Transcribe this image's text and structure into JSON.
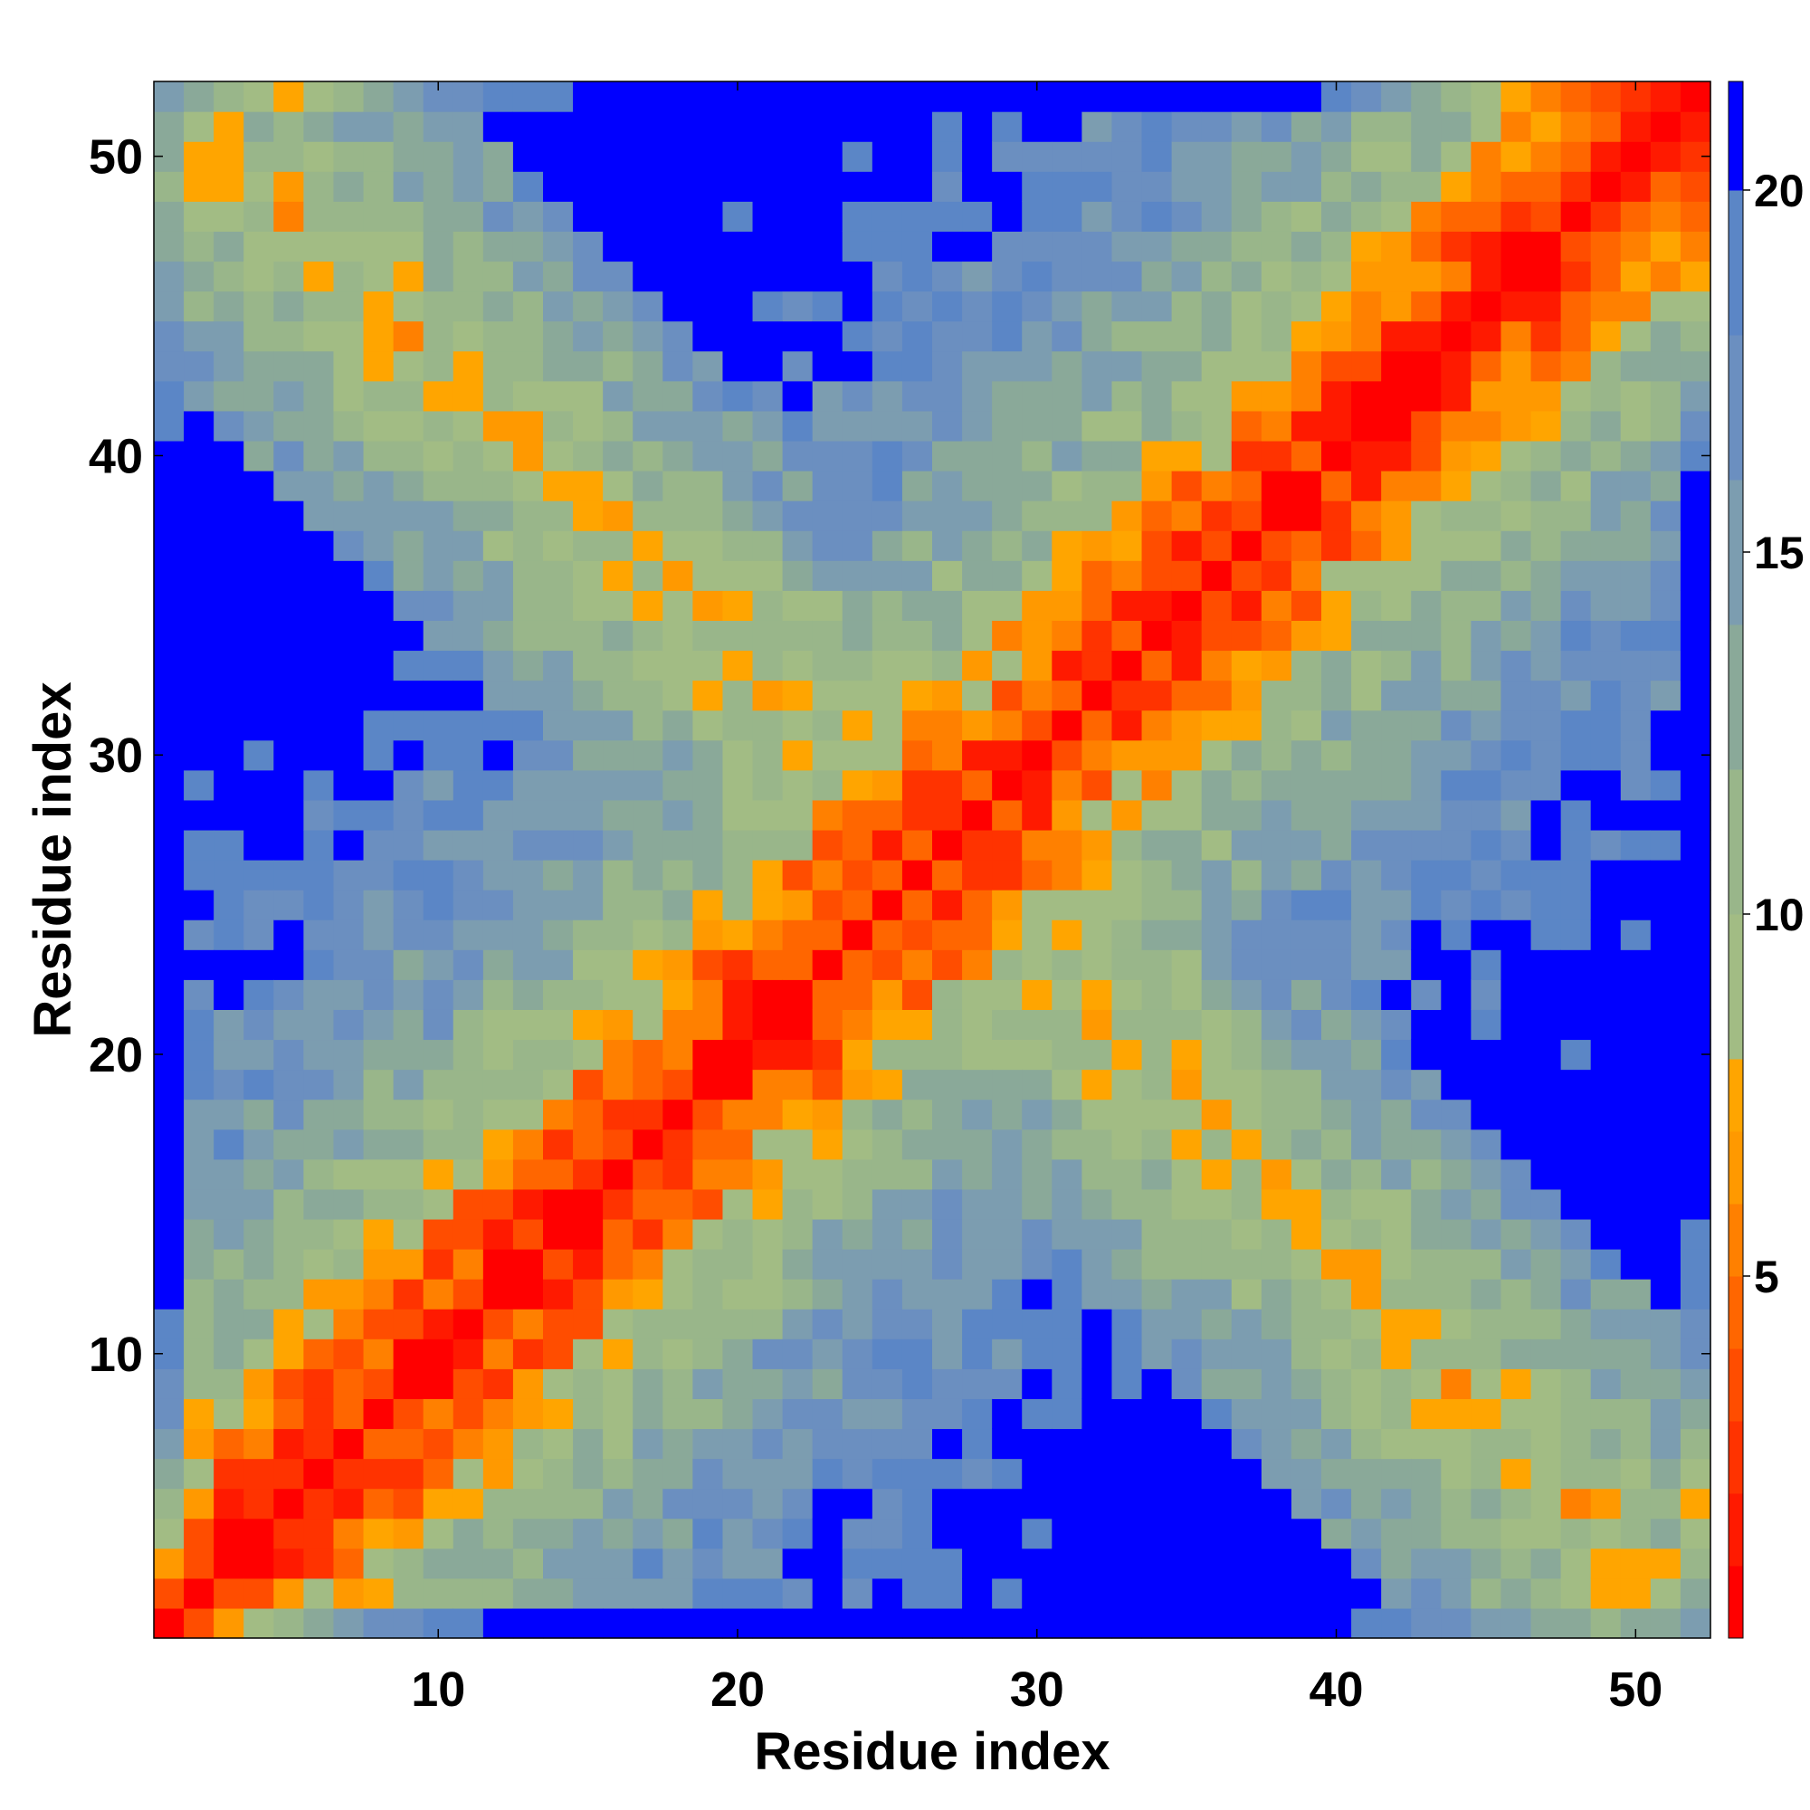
{
  "chart_data": {
    "type": "heatmap",
    "title": "",
    "xlabel": "Residue index",
    "ylabel": "Residue index",
    "n_residues": 52,
    "x_ticks": [
      10,
      20,
      30,
      40,
      50
    ],
    "y_ticks": [
      10,
      20,
      30,
      40,
      50
    ],
    "colorbar": {
      "range": [
        0,
        21.5
      ],
      "ticks": [
        5,
        10,
        15,
        20
      ],
      "bins": [
        {
          "upper": 1.0,
          "color": "#ff0000"
        },
        {
          "upper": 2.0,
          "color": "#ff1a00"
        },
        {
          "upper": 3.0,
          "color": "#ff3300"
        },
        {
          "upper": 4.0,
          "color": "#ff4d00"
        },
        {
          "upper": 5.0,
          "color": "#ff6600"
        },
        {
          "upper": 6.0,
          "color": "#ff8000"
        },
        {
          "upper": 7.0,
          "color": "#ff9900"
        },
        {
          "upper": 8.0,
          "color": "#ffa500"
        },
        {
          "upper": 10.0,
          "color": "#a2bc84"
        },
        {
          "upper": 12.0,
          "color": "#99b68a"
        },
        {
          "upper": 14.0,
          "color": "#8aa999"
        },
        {
          "upper": 16.0,
          "color": "#7c9db0"
        },
        {
          "upper": 18.0,
          "color": "#6b8fc0"
        },
        {
          "upper": 20.0,
          "color": "#5b86c6"
        },
        {
          "upper": 99.0,
          "color": "#0000ff"
        }
      ]
    },
    "matrix_description": "Symmetric 52x52 residue distance map; each cell value = approximate distance between residue i and residue j.",
    "anchors": {
      "rows": [
        {
          "i": 1,
          "vals": [
            0,
            4,
            7,
            10,
            12,
            14,
            15,
            17,
            18,
            19,
            20,
            21,
            21,
            21,
            21,
            22,
            22,
            22,
            22,
            22,
            22,
            22,
            22,
            22,
            22,
            22,
            22,
            22,
            22,
            22,
            22,
            22,
            22,
            22,
            22,
            22,
            22,
            22,
            22,
            21,
            20,
            19,
            18,
            17,
            16,
            15,
            14,
            13,
            12,
            13,
            14,
            15
          ]
        },
        {
          "i": 52,
          "vals": [
            15,
            14,
            12,
            10,
            8,
            10,
            12,
            14,
            16,
            17,
            18,
            19,
            20,
            20,
            21,
            21,
            22,
            22,
            22,
            22,
            22,
            22,
            22,
            22,
            22,
            22,
            22,
            22,
            22,
            22,
            22,
            22,
            22,
            22,
            22,
            22,
            22,
            22,
            21,
            20,
            18,
            16,
            14,
            12,
            10,
            8,
            6,
            5,
            4,
            3,
            2,
            0
          ]
        }
      ]
    }
  }
}
